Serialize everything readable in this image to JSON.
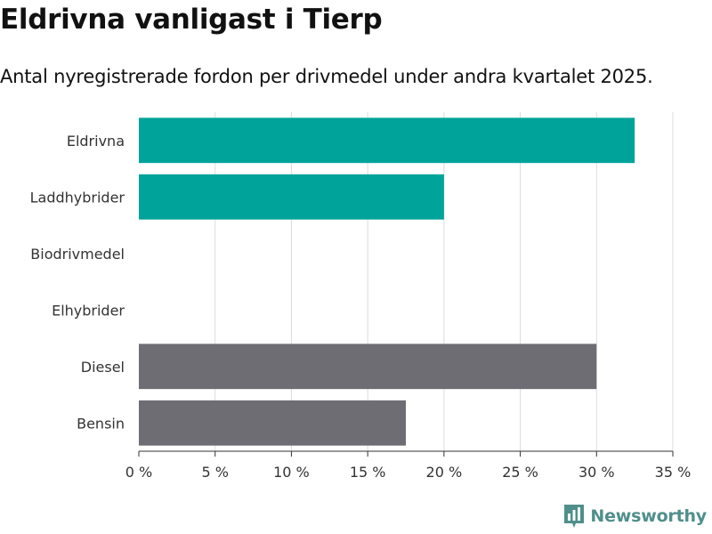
{
  "header": {
    "title": "Eldrivna vanligast i Tierp",
    "subtitle": "Antal nyregistrerade fordon per drivmedel under andra kvartalet 2025."
  },
  "brand": {
    "name": "Newsworthy",
    "icon": "newsworthy-logo-icon",
    "color": "#4f8f8b"
  },
  "chart_data": {
    "type": "bar",
    "orientation": "horizontal",
    "title": "",
    "xlabel": "",
    "ylabel": "",
    "categories": [
      "Eldrivna",
      "Laddhybrider",
      "Biodrivmedel",
      "Elhybrider",
      "Diesel",
      "Bensin"
    ],
    "values": [
      32.5,
      20.0,
      0,
      0,
      30.0,
      17.5
    ],
    "colors": [
      "#00a39a",
      "#00a39a",
      "#00a39a",
      "#00a39a",
      "#6e6d74",
      "#6e6d74"
    ],
    "xlim": [
      0,
      35
    ],
    "xticks": [
      0,
      5,
      10,
      15,
      20,
      25,
      30,
      35
    ],
    "xtick_labels": [
      "0 %",
      "5 %",
      "10 %",
      "15 %",
      "20 %",
      "25 %",
      "30 %",
      "35 %"
    ],
    "grid": "vertical",
    "legend": "none"
  }
}
